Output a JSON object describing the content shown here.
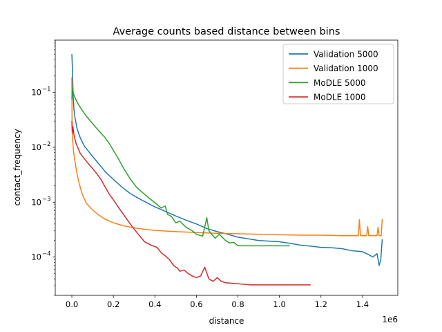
{
  "chart_data": {
    "type": "line",
    "title": "Average counts based distance between bins",
    "xlabel": "distance",
    "ylabel": "contact_frequency",
    "x_offset_label": "1e6",
    "x_scale": "linear",
    "y_scale": "log",
    "xlim": [
      -80000,
      1570000
    ],
    "ylim": [
      2e-05,
      0.9
    ],
    "x_ticks": [
      0,
      200000,
      400000,
      600000,
      800000,
      1000000,
      1200000,
      1400000
    ],
    "x_tick_labels": [
      "0.0",
      "0.2",
      "0.4",
      "0.6",
      "0.8",
      "1.0",
      "1.2",
      "1.4"
    ],
    "y_ticks": [
      0.0001,
      0.001,
      0.01,
      0.1
    ],
    "y_tick_labels": [
      "10",
      "10",
      "10",
      "10"
    ],
    "y_tick_exponents": [
      "−4",
      "−3",
      "−2",
      "−1"
    ],
    "legend_position": "upper right",
    "grid": false,
    "series": [
      {
        "name": "Validation 5000",
        "color": "#1f77b4",
        "points": [
          [
            0,
            0.5
          ],
          [
            3000,
            0.25
          ],
          [
            6000,
            0.09
          ],
          [
            10000,
            0.05
          ],
          [
            15000,
            0.035
          ],
          [
            25000,
            0.022
          ],
          [
            40000,
            0.015
          ],
          [
            60000,
            0.0105
          ],
          [
            80000,
            0.0085
          ],
          [
            100000,
            0.0068
          ],
          [
            130000,
            0.005
          ],
          [
            160000,
            0.0036
          ],
          [
            200000,
            0.0026
          ],
          [
            240000,
            0.0019
          ],
          [
            280000,
            0.00145
          ],
          [
            320000,
            0.00118
          ],
          [
            360000,
            0.00098
          ],
          [
            400000,
            0.00082
          ],
          [
            450000,
            0.00068
          ],
          [
            500000,
            0.00056
          ],
          [
            550000,
            0.00047
          ],
          [
            600000,
            0.0004
          ],
          [
            650000,
            0.00033
          ],
          [
            700000,
            0.00029
          ],
          [
            750000,
            0.00026
          ],
          [
            800000,
            0.00023
          ],
          [
            850000,
            0.000215
          ],
          [
            900000,
            0.0002
          ],
          [
            950000,
            0.000195
          ],
          [
            1000000,
            0.00019
          ],
          [
            1050000,
            0.000178
          ],
          [
            1100000,
            0.000165
          ],
          [
            1150000,
            0.000158
          ],
          [
            1200000,
            0.00015
          ],
          [
            1250000,
            0.000148
          ],
          [
            1300000,
            0.000142
          ],
          [
            1350000,
            0.00013
          ],
          [
            1400000,
            0.000125
          ],
          [
            1430000,
            0.00011
          ],
          [
            1450000,
            0.0001
          ],
          [
            1470000,
            0.000115
          ],
          [
            1480000,
            7e-05
          ],
          [
            1488000,
            9e-05
          ],
          [
            1495000,
            0.00021
          ]
        ]
      },
      {
        "name": "Validation 1000",
        "color": "#ff7f0e",
        "points": [
          [
            0,
            0.19
          ],
          [
            1000,
            0.03
          ],
          [
            3000,
            0.015
          ],
          [
            8000,
            0.0085
          ],
          [
            15000,
            0.0055
          ],
          [
            25000,
            0.0033
          ],
          [
            35000,
            0.0022
          ],
          [
            50000,
            0.0014
          ],
          [
            70000,
            0.00095
          ],
          [
            100000,
            0.00072
          ],
          [
            130000,
            0.00058
          ],
          [
            160000,
            0.00049
          ],
          [
            200000,
            0.00042
          ],
          [
            250000,
            0.00037
          ],
          [
            300000,
            0.00034
          ],
          [
            350000,
            0.00032
          ],
          [
            400000,
            0.000305
          ],
          [
            500000,
            0.00029
          ],
          [
            600000,
            0.00028
          ],
          [
            700000,
            0.00027
          ],
          [
            800000,
            0.000265
          ],
          [
            900000,
            0.00026
          ],
          [
            1000000,
            0.000255
          ],
          [
            1100000,
            0.00025
          ],
          [
            1200000,
            0.00025
          ],
          [
            1300000,
            0.000245
          ],
          [
            1380000,
            0.000245
          ],
          [
            1385000,
            0.00048
          ],
          [
            1390000,
            0.000245
          ],
          [
            1420000,
            0.000245
          ],
          [
            1425000,
            0.00036
          ],
          [
            1430000,
            0.000245
          ],
          [
            1470000,
            0.000245
          ],
          [
            1475000,
            0.00035
          ],
          [
            1480000,
            0.000245
          ],
          [
            1490000,
            0.000245
          ],
          [
            1495000,
            0.00049
          ]
        ]
      },
      {
        "name": "MoDLE 5000",
        "color": "#2ca02c",
        "points": [
          [
            0,
            0.075
          ],
          [
            3000,
            0.12
          ],
          [
            8000,
            0.095
          ],
          [
            15000,
            0.08
          ],
          [
            30000,
            0.062
          ],
          [
            50000,
            0.047
          ],
          [
            70000,
            0.037
          ],
          [
            100000,
            0.027
          ],
          [
            130000,
            0.02
          ],
          [
            160000,
            0.015
          ],
          [
            180000,
            0.0118
          ],
          [
            200000,
            0.0088
          ],
          [
            220000,
            0.0066
          ],
          [
            250000,
            0.0041
          ],
          [
            280000,
            0.0027
          ],
          [
            310000,
            0.0019
          ],
          [
            340000,
            0.0015
          ],
          [
            380000,
            0.00112
          ],
          [
            410000,
            0.00091
          ],
          [
            430000,
            0.00078
          ],
          [
            450000,
            0.00085
          ],
          [
            460000,
            0.0006
          ],
          [
            480000,
            0.00055
          ],
          [
            500000,
            0.00042
          ],
          [
            520000,
            0.00045
          ],
          [
            550000,
            0.00035
          ],
          [
            580000,
            0.0003
          ],
          [
            600000,
            0.00026
          ],
          [
            630000,
            0.00024
          ],
          [
            650000,
            0.00052
          ],
          [
            660000,
            0.0003
          ],
          [
            690000,
            0.00022
          ],
          [
            710000,
            0.00026
          ],
          [
            740000,
            0.0002
          ],
          [
            760000,
            0.00018
          ],
          [
            780000,
            0.000185
          ],
          [
            800000,
            0.00016
          ],
          [
            850000,
            0.00016
          ],
          [
            900000,
            0.00016
          ],
          [
            950000,
            0.00016
          ],
          [
            1000000,
            0.00016
          ],
          [
            1050000,
            0.00016
          ]
        ]
      },
      {
        "name": "MoDLE 1000",
        "color": "#d62728",
        "points": [
          [
            0,
            0.03
          ],
          [
            2000,
            0.018
          ],
          [
            5000,
            0.024
          ],
          [
            10000,
            0.017
          ],
          [
            20000,
            0.0118
          ],
          [
            40000,
            0.0078
          ],
          [
            60000,
            0.0062
          ],
          [
            80000,
            0.005
          ],
          [
            100000,
            0.0041
          ],
          [
            120000,
            0.0033
          ],
          [
            140000,
            0.0026
          ],
          [
            160000,
            0.0019
          ],
          [
            180000,
            0.0014
          ],
          [
            200000,
            0.0011
          ],
          [
            230000,
            0.00075
          ],
          [
            260000,
            0.00052
          ],
          [
            290000,
            0.00036
          ],
          [
            320000,
            0.00026
          ],
          [
            350000,
            0.00019
          ],
          [
            380000,
            0.000165
          ],
          [
            410000,
            0.00015
          ],
          [
            430000,
            0.00012
          ],
          [
            450000,
            0.000105
          ],
          [
            470000,
            9e-05
          ],
          [
            490000,
            7e-05
          ],
          [
            510000,
            6.2e-05
          ],
          [
            520000,
            5.5e-05
          ],
          [
            540000,
            5.8e-05
          ],
          [
            560000,
            5e-05
          ],
          [
            580000,
            4.5e-05
          ],
          [
            600000,
            4.2e-05
          ],
          [
            620000,
            4.5e-05
          ],
          [
            640000,
            6.5e-05
          ],
          [
            660000,
            4e-05
          ],
          [
            680000,
            3.6e-05
          ],
          [
            700000,
            4.2e-05
          ],
          [
            720000,
            3.6e-05
          ],
          [
            740000,
            3.4e-05
          ],
          [
            780000,
            3.3e-05
          ],
          [
            820000,
            3.2e-05
          ],
          [
            860000,
            3.1e-05
          ],
          [
            900000,
            3.1e-05
          ],
          [
            950000,
            3.1e-05
          ],
          [
            1000000,
            3.1e-05
          ],
          [
            1100000,
            3.1e-05
          ],
          [
            1150000,
            3.1e-05
          ]
        ]
      }
    ]
  }
}
